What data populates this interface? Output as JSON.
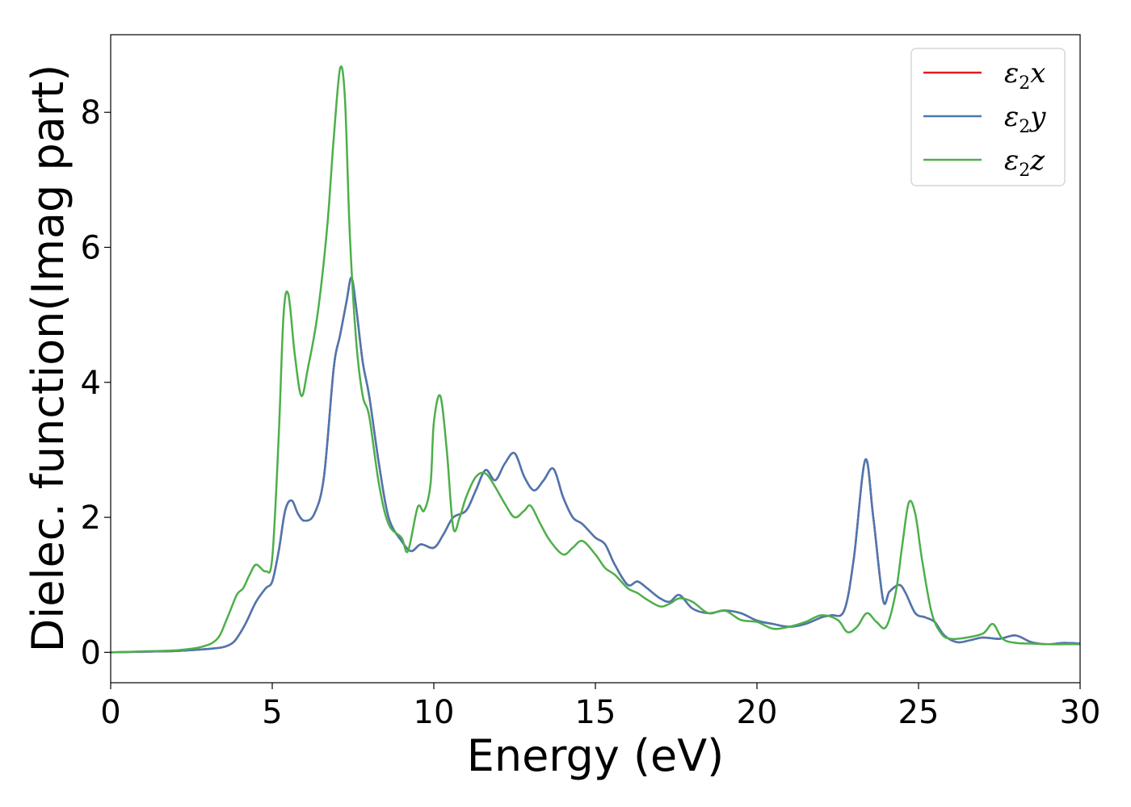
{
  "chart_data": {
    "type": "line",
    "xlabel": "Energy (eV)",
    "ylabel": "Dielec. function(Imag part)",
    "xlim": [
      0,
      30
    ],
    "ylim": [
      -0.45,
      9.15
    ],
    "xticks": [
      0,
      5,
      10,
      15,
      20,
      25,
      30
    ],
    "yticks": [
      0,
      2,
      4,
      6,
      8
    ],
    "grid": false,
    "legend_position": "top-right",
    "series": [
      {
        "name": "ε2x",
        "legend_main": "ε",
        "legend_sub": "2",
        "legend_suffix": "x",
        "color": "#e41a1c",
        "x": [
          0,
          1,
          2,
          3,
          3.5,
          3.8,
          4.0,
          4.2,
          4.5,
          4.8,
          5.0,
          5.2,
          5.4,
          5.6,
          5.8,
          6.0,
          6.3,
          6.6,
          6.9,
          7.1,
          7.3,
          7.45,
          7.6,
          7.8,
          8.0,
          8.3,
          8.6,
          9.0,
          9.3,
          9.6,
          10.0,
          10.3,
          10.6,
          11.0,
          11.3,
          11.6,
          11.9,
          12.2,
          12.5,
          12.8,
          13.1,
          13.4,
          13.7,
          14.0,
          14.3,
          14.6,
          15.0,
          15.3,
          15.6,
          16.0,
          16.3,
          16.6,
          17.0,
          17.3,
          17.6,
          18.0,
          18.5,
          19.0,
          19.5,
          20.0,
          20.5,
          21.0,
          21.5,
          22.0,
          22.3,
          22.7,
          23.0,
          23.35,
          23.6,
          23.9,
          24.1,
          24.4,
          24.6,
          24.9,
          25.2,
          25.5,
          25.8,
          26.2,
          26.6,
          27.0,
          27.5,
          28.0,
          28.5,
          29.0,
          29.5,
          30.0
        ],
        "y": [
          0,
          0.01,
          0.02,
          0.05,
          0.08,
          0.15,
          0.28,
          0.45,
          0.75,
          0.95,
          1.05,
          1.5,
          2.1,
          2.25,
          2.05,
          1.95,
          2.05,
          2.6,
          4.2,
          4.7,
          5.2,
          5.55,
          5.1,
          4.3,
          3.8,
          2.8,
          2.0,
          1.65,
          1.5,
          1.6,
          1.55,
          1.75,
          2.0,
          2.1,
          2.4,
          2.7,
          2.55,
          2.8,
          2.95,
          2.6,
          2.4,
          2.55,
          2.72,
          2.3,
          2.0,
          1.9,
          1.7,
          1.6,
          1.3,
          1.0,
          1.05,
          0.95,
          0.8,
          0.75,
          0.85,
          0.65,
          0.58,
          0.62,
          0.58,
          0.47,
          0.42,
          0.38,
          0.42,
          0.52,
          0.55,
          0.62,
          1.4,
          2.85,
          2.0,
          0.78,
          0.9,
          1.0,
          0.88,
          0.58,
          0.52,
          0.45,
          0.25,
          0.15,
          0.18,
          0.22,
          0.2,
          0.25,
          0.15,
          0.12,
          0.14,
          0.13
        ]
      },
      {
        "name": "ε2y",
        "legend_main": "ε",
        "legend_sub": "2",
        "legend_suffix": "y",
        "color": "#4a78b0",
        "x": [
          0,
          1,
          2,
          3,
          3.5,
          3.8,
          4.0,
          4.2,
          4.5,
          4.8,
          5.0,
          5.2,
          5.4,
          5.6,
          5.8,
          6.0,
          6.3,
          6.6,
          6.9,
          7.1,
          7.3,
          7.45,
          7.6,
          7.8,
          8.0,
          8.3,
          8.6,
          9.0,
          9.3,
          9.6,
          10.0,
          10.3,
          10.6,
          11.0,
          11.3,
          11.6,
          11.9,
          12.2,
          12.5,
          12.8,
          13.1,
          13.4,
          13.7,
          14.0,
          14.3,
          14.6,
          15.0,
          15.3,
          15.6,
          16.0,
          16.3,
          16.6,
          17.0,
          17.3,
          17.6,
          18.0,
          18.5,
          19.0,
          19.5,
          20.0,
          20.5,
          21.0,
          21.5,
          22.0,
          22.3,
          22.7,
          23.0,
          23.35,
          23.6,
          23.9,
          24.1,
          24.4,
          24.6,
          24.9,
          25.2,
          25.5,
          25.8,
          26.2,
          26.6,
          27.0,
          27.5,
          28.0,
          28.5,
          29.0,
          29.5,
          30.0
        ],
        "y": [
          0,
          0.01,
          0.02,
          0.05,
          0.08,
          0.15,
          0.28,
          0.45,
          0.75,
          0.95,
          1.05,
          1.5,
          2.1,
          2.25,
          2.05,
          1.95,
          2.05,
          2.6,
          4.2,
          4.7,
          5.2,
          5.55,
          5.1,
          4.3,
          3.8,
          2.8,
          2.0,
          1.65,
          1.5,
          1.6,
          1.55,
          1.75,
          2.0,
          2.1,
          2.4,
          2.7,
          2.55,
          2.8,
          2.95,
          2.6,
          2.4,
          2.55,
          2.72,
          2.3,
          2.0,
          1.9,
          1.7,
          1.6,
          1.3,
          1.0,
          1.05,
          0.95,
          0.8,
          0.75,
          0.85,
          0.65,
          0.58,
          0.62,
          0.58,
          0.47,
          0.42,
          0.38,
          0.42,
          0.52,
          0.55,
          0.62,
          1.4,
          2.85,
          2.0,
          0.78,
          0.9,
          1.0,
          0.88,
          0.58,
          0.52,
          0.45,
          0.25,
          0.15,
          0.18,
          0.22,
          0.2,
          0.25,
          0.15,
          0.12,
          0.14,
          0.13
        ]
      },
      {
        "name": "ε2z",
        "legend_main": "ε",
        "legend_sub": "2",
        "legend_suffix": "z",
        "color": "#4daf4a",
        "x": [
          0,
          1,
          2,
          2.8,
          3.3,
          3.6,
          3.9,
          4.1,
          4.3,
          4.5,
          4.8,
          5.0,
          5.2,
          5.35,
          5.5,
          5.7,
          5.9,
          6.1,
          6.4,
          6.7,
          6.9,
          7.1,
          7.25,
          7.4,
          7.6,
          7.8,
          8.0,
          8.3,
          8.6,
          9.0,
          9.2,
          9.5,
          9.7,
          9.9,
          10.0,
          10.2,
          10.4,
          10.6,
          10.8,
          11.0,
          11.3,
          11.6,
          11.9,
          12.2,
          12.5,
          12.8,
          13.0,
          13.3,
          13.6,
          14.0,
          14.3,
          14.6,
          15.0,
          15.3,
          15.6,
          16.0,
          16.3,
          16.6,
          17.0,
          17.3,
          17.6,
          18.0,
          18.5,
          19.0,
          19.5,
          20.0,
          20.5,
          21.0,
          21.5,
          22.0,
          22.5,
          22.8,
          23.1,
          23.4,
          23.7,
          24.0,
          24.3,
          24.5,
          24.7,
          24.9,
          25.1,
          25.4,
          25.7,
          26.0,
          26.5,
          27.0,
          27.3,
          27.6,
          28.0,
          28.5,
          29.0,
          29.5,
          30.0
        ],
        "y": [
          0,
          0.015,
          0.03,
          0.08,
          0.2,
          0.5,
          0.85,
          0.95,
          1.15,
          1.3,
          1.2,
          1.4,
          3.2,
          5.0,
          5.3,
          4.4,
          3.8,
          4.2,
          5.0,
          6.3,
          7.6,
          8.65,
          8.2,
          6.2,
          4.6,
          3.8,
          3.5,
          2.5,
          1.9,
          1.7,
          1.5,
          2.15,
          2.1,
          2.5,
          3.4,
          3.8,
          3.0,
          1.85,
          2.0,
          2.3,
          2.6,
          2.65,
          2.45,
          2.2,
          2.0,
          2.1,
          2.17,
          1.9,
          1.65,
          1.45,
          1.55,
          1.65,
          1.45,
          1.25,
          1.15,
          0.95,
          0.88,
          0.78,
          0.68,
          0.72,
          0.8,
          0.75,
          0.58,
          0.62,
          0.48,
          0.45,
          0.35,
          0.38,
          0.45,
          0.55,
          0.48,
          0.3,
          0.38,
          0.58,
          0.45,
          0.38,
          0.9,
          1.6,
          2.22,
          2.05,
          1.4,
          0.6,
          0.28,
          0.2,
          0.22,
          0.28,
          0.42,
          0.2,
          0.14,
          0.13,
          0.12,
          0.12,
          0.12
        ]
      }
    ]
  }
}
